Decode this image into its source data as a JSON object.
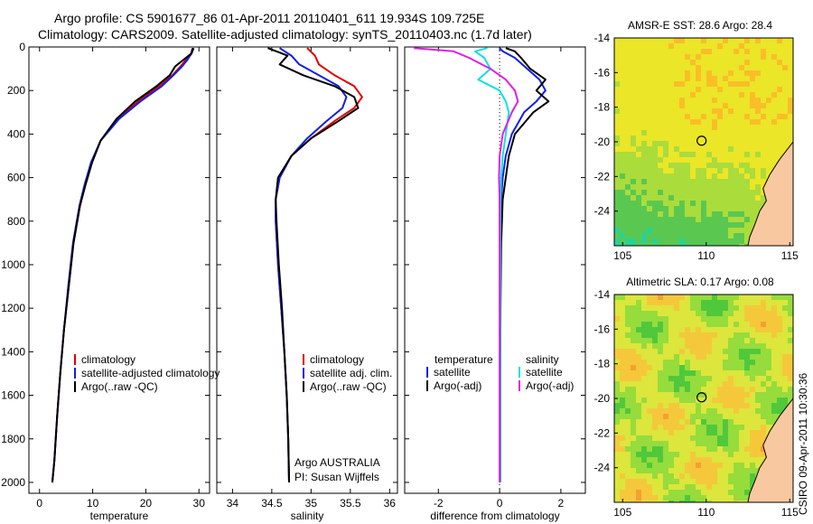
{
  "header": {
    "line1": "Argo profile: CS 5901677_86 01-Apr-2011 20110401_611 19.934S 109.725E",
    "line2": "Climatology: CARS2009. Satellite-adjusted climatology: synTS_20110403.nc (1.7d later)"
  },
  "credit": "CSIRO 09-Apr-2011 10:30:36",
  "colors": {
    "climatology": "#e00000",
    "satellite": "#1020e0",
    "argo": "#000000",
    "sat_diff": "#10e0e0",
    "argo_adj": "#e020e0",
    "land": "#f8c8a0"
  },
  "chart_data": [
    {
      "type": "line",
      "name": "temperature",
      "xlabel": "temperature",
      "ylabel": "",
      "xlim": [
        -2,
        32
      ],
      "ylim": [
        2050,
        0
      ],
      "xticks": [
        0,
        10,
        20,
        30
      ],
      "yticks": [
        0,
        200,
        400,
        600,
        800,
        1000,
        1200,
        1400,
        1600,
        1800,
        2000
      ],
      "legend": [
        "climatology",
        "satellite-adjusted climatology",
        "Argo(..raw -QC)"
      ],
      "series": [
        {
          "name": "climatology",
          "color": "#e00000",
          "x": [
            28.8,
            28.5,
            27.5,
            26.5,
            25.0,
            22.5,
            18.5,
            14.8,
            11.5,
            9.8,
            8.6,
            7.6,
            6.4,
            5.5,
            4.6,
            3.9,
            3.3,
            2.8,
            2.4
          ],
          "y": [
            5,
            30,
            60,
            90,
            130,
            180,
            250,
            330,
            430,
            530,
            630,
            730,
            900,
            1100,
            1300,
            1500,
            1700,
            1900,
            2000
          ]
        },
        {
          "name": "satellite-adjusted climatology",
          "color": "#1020e0",
          "x": [
            28.8,
            28.6,
            27.8,
            26.8,
            25.2,
            23.0,
            19.0,
            15.0,
            11.5,
            9.7,
            8.5,
            7.5,
            6.3,
            5.4,
            4.6,
            3.9,
            3.3,
            2.8,
            2.4
          ],
          "y": [
            5,
            30,
            60,
            90,
            130,
            180,
            250,
            330,
            430,
            530,
            630,
            730,
            900,
            1100,
            1300,
            1500,
            1700,
            1900,
            2000
          ]
        },
        {
          "name": "Argo(..raw -QC)",
          "color": "#000000",
          "x": [
            29.0,
            28.6,
            27.0,
            25.5,
            24.5,
            22.0,
            18.0,
            14.5,
            11.5,
            9.9,
            8.7,
            7.6,
            6.4,
            5.5,
            4.6,
            3.9,
            3.3,
            2.8,
            2.4
          ],
          "y": [
            5,
            30,
            60,
            90,
            130,
            180,
            250,
            330,
            430,
            530,
            630,
            730,
            900,
            1100,
            1300,
            1500,
            1700,
            1900,
            2000
          ]
        }
      ]
    },
    {
      "type": "line",
      "name": "salinity",
      "xlabel": "salinity",
      "ylabel": "",
      "xlim": [
        33.8,
        36.1
      ],
      "ylim": [
        2050,
        0
      ],
      "xticks": [
        34,
        34.5,
        35,
        35.5,
        36
      ],
      "yticks": [
        0,
        200,
        400,
        600,
        800,
        1000,
        1200,
        1400,
        1600,
        1800,
        2000
      ],
      "legend": [
        "climatology",
        "satellite adj. clim.",
        "Argo(..raw -QC)"
      ],
      "annotation": [
        "Argo AUSTRALIA",
        "PI: Susan Wijffels"
      ],
      "series": [
        {
          "name": "climatology",
          "color": "#e00000",
          "x": [
            34.95,
            35.05,
            35.1,
            35.3,
            35.55,
            35.65,
            35.55,
            35.3,
            35.0,
            34.75,
            34.6,
            34.55,
            34.55,
            34.58,
            34.62,
            34.66,
            34.69,
            34.71,
            34.72
          ],
          "y": [
            5,
            40,
            80,
            130,
            180,
            230,
            280,
            340,
            420,
            500,
            600,
            700,
            800,
            1000,
            1200,
            1400,
            1600,
            1800,
            2000
          ]
        },
        {
          "name": "satellite adj. clim.",
          "color": "#1020e0",
          "x": [
            34.6,
            34.75,
            34.85,
            35.1,
            35.35,
            35.45,
            35.4,
            35.2,
            34.95,
            34.75,
            34.6,
            34.55,
            34.55,
            34.58,
            34.62,
            34.66,
            34.69,
            34.71,
            34.72
          ],
          "y": [
            5,
            40,
            80,
            130,
            180,
            230,
            280,
            340,
            420,
            500,
            600,
            700,
            800,
            1000,
            1200,
            1400,
            1600,
            1800,
            2000
          ]
        },
        {
          "name": "Argo(..raw -QC)",
          "color": "#000000",
          "x": [
            34.45,
            34.7,
            34.6,
            34.9,
            35.3,
            35.55,
            35.6,
            35.35,
            35.0,
            34.75,
            34.58,
            34.55,
            34.56,
            34.59,
            34.63,
            34.66,
            34.69,
            34.71,
            34.72
          ],
          "y": [
            5,
            40,
            80,
            130,
            180,
            230,
            280,
            340,
            420,
            500,
            600,
            700,
            800,
            1000,
            1200,
            1400,
            1600,
            1800,
            2000
          ]
        }
      ]
    },
    {
      "type": "line",
      "name": "difference",
      "xlabel": "difference from climatology",
      "ylabel": "",
      "xlim": [
        -3.1,
        2.8
      ],
      "ylim": [
        2050,
        0
      ],
      "xticks": [
        -2,
        0,
        2
      ],
      "yticks": [
        0,
        200,
        400,
        600,
        800,
        1000,
        1200,
        1400,
        1600,
        1800,
        2000
      ],
      "legend_headers": [
        "temperature",
        "salinity"
      ],
      "legend": [
        "satellite",
        "Argo(-adj)",
        "satellite",
        "Argo(-adj)"
      ],
      "series": [
        {
          "name": "temperature satellite",
          "color": "#1020e0",
          "x": [
            0.0,
            0.1,
            0.5,
            0.9,
            1.3,
            1.5,
            1.2,
            0.8,
            0.4,
            0.2,
            0.1,
            0.05,
            0.03,
            0.02,
            0.02,
            0.02,
            0.02
          ],
          "y": [
            5,
            20,
            50,
            100,
            150,
            200,
            250,
            300,
            400,
            500,
            600,
            700,
            900,
            1200,
            1500,
            1800,
            2000
          ]
        },
        {
          "name": "temperature Argo(-adj)",
          "color": "#000000",
          "x": [
            0.2,
            0.5,
            0.7,
            1.0,
            1.5,
            1.2,
            1.6,
            1.1,
            0.5,
            0.3,
            0.2,
            0.1,
            0.05,
            0.03,
            0.02,
            0.02,
            0.02
          ],
          "y": [
            5,
            20,
            50,
            100,
            150,
            200,
            250,
            300,
            400,
            500,
            600,
            700,
            900,
            1200,
            1500,
            1800,
            2000
          ]
        },
        {
          "name": "salinity satellite",
          "color": "#10e0e0",
          "x": [
            -0.4,
            -0.8,
            -0.5,
            -0.3,
            -0.7,
            0.0,
            0.2,
            0.3,
            0.2,
            0.1,
            0.05,
            0.03,
            0.02,
            0.02,
            0.02,
            0.02,
            0.02
          ],
          "y": [
            5,
            20,
            50,
            100,
            150,
            200,
            250,
            300,
            400,
            500,
            600,
            700,
            900,
            1200,
            1500,
            1800,
            2000
          ]
        },
        {
          "name": "salinity Argo(-adj)",
          "color": "#e020e0",
          "x": [
            -2.8,
            -1.5,
            -1.0,
            -0.3,
            0.2,
            0.5,
            0.6,
            0.4,
            0.1,
            0.0,
            -0.02,
            0.0,
            0.0,
            0.0,
            0.0,
            0.0,
            0.0
          ],
          "y": [
            5,
            20,
            50,
            100,
            150,
            200,
            250,
            300,
            400,
            500,
            600,
            700,
            900,
            1200,
            1500,
            1800,
            2000
          ]
        }
      ]
    },
    {
      "type": "heatmap",
      "name": "sst",
      "title": "AMSR-E SST: 28.6 Argo: 28.4",
      "xlim": [
        104.5,
        115.2
      ],
      "ylim": [
        -26,
        -14
      ],
      "xticks": [
        105,
        110,
        115
      ],
      "yticks": [
        -14,
        -16,
        -18,
        -20,
        -22,
        -24
      ],
      "marker": [
        109.725,
        -19.934
      ]
    },
    {
      "type": "heatmap",
      "name": "sla",
      "title": "Altimetric SLA: 0.17 Argo: 0.08",
      "xlim": [
        104.5,
        115.2
      ],
      "ylim": [
        -26,
        -14
      ],
      "xticks": [
        105,
        110,
        115
      ],
      "yticks": [
        -14,
        -16,
        -18,
        -20,
        -22,
        -24
      ],
      "marker": [
        109.725,
        -19.934
      ]
    }
  ]
}
